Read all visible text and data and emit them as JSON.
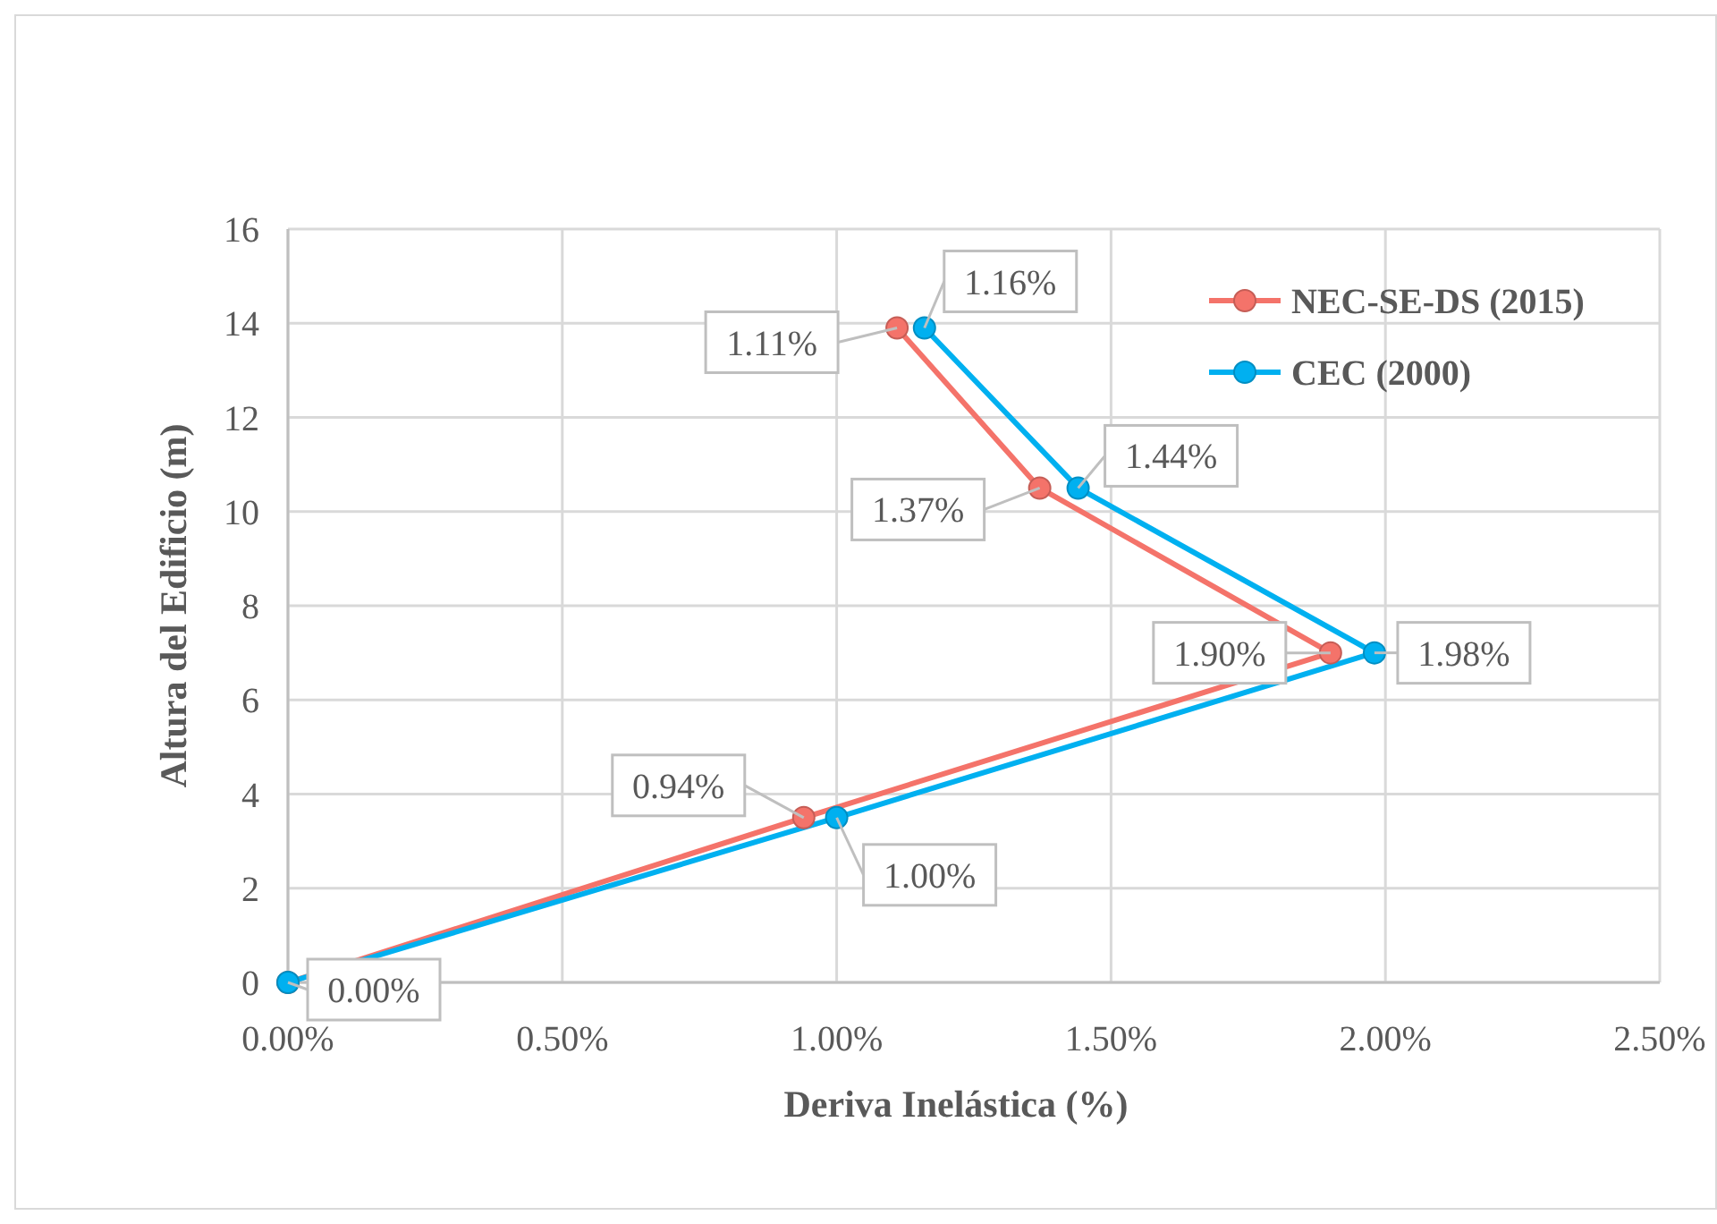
{
  "chart_data": {
    "type": "line",
    "orientation": "horizontal",
    "xlabel": "Deriva Inelástica (%)",
    "ylabel": "Altura del Edificio (m)",
    "xlim": [
      0,
      2.5
    ],
    "xticks": [
      {
        "value": 0,
        "label": "0.00%"
      },
      {
        "value": 0.5,
        "label": "0.50%"
      },
      {
        "value": 1,
        "label": "1.00%"
      },
      {
        "value": 1.5,
        "label": "1.50%"
      },
      {
        "value": 2,
        "label": "2.00%"
      },
      {
        "value": 2.5,
        "label": "2.50%"
      }
    ],
    "ylim": [
      0,
      16
    ],
    "yticks": [
      0,
      2,
      4,
      6,
      8,
      10,
      12,
      14,
      16
    ],
    "grid": true,
    "legend": "top right",
    "marker": "circle",
    "line_style": "solid",
    "series": [
      {
        "name": "NEC-SE-DS (2015)",
        "color": "#f4736a",
        "x": [
          0,
          3.5,
          7,
          10.5,
          13.9
        ],
        "values": [
          0,
          0.94,
          1.9,
          1.37,
          1.11
        ],
        "value_labels": [
          null,
          "0.94%",
          "1.90%",
          "1.37%",
          "1.11%"
        ]
      },
      {
        "name": "CEC (2000)",
        "color": "#00b0f0",
        "x": [
          0,
          3.5,
          7,
          10.5,
          13.9
        ],
        "values": [
          0,
          1.0,
          1.98,
          1.44,
          1.16
        ],
        "value_labels": [
          "0.00%",
          "1.00%",
          "1.98%",
          "1.44%",
          "1.16%"
        ]
      }
    ]
  }
}
